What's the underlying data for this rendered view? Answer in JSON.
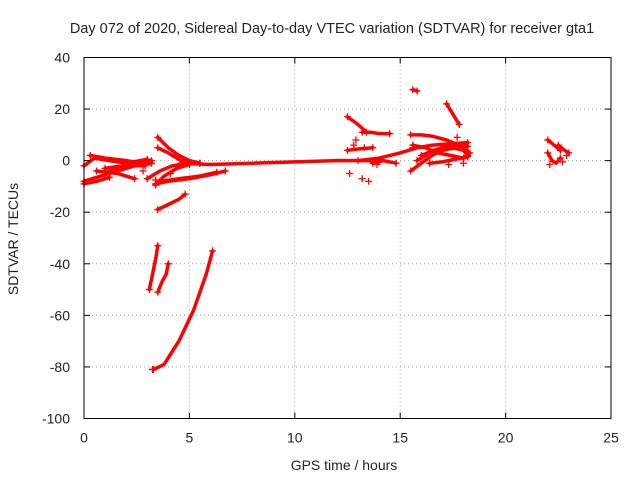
{
  "chart_data": {
    "type": "scatter",
    "title": "Day 072 of 2020, Sidereal Day-to-day VTEC variation (SDTVAR) for receiver gta1",
    "xlabel": "GPS time / hours",
    "ylabel": "SDTVAR / TECUs",
    "xlim": [
      0,
      25
    ],
    "ylim": [
      -100,
      40
    ],
    "x_ticks": [
      0,
      5,
      10,
      15,
      20,
      25
    ],
    "y_ticks": [
      -100,
      -80,
      -60,
      -40,
      -20,
      0,
      20,
      40
    ],
    "grid": true,
    "marker": "+",
    "series_color": "#ff0000",
    "tracks": [
      {
        "name": "main-band",
        "points": [
          [
            4.6,
            -1
          ],
          [
            6,
            -1.5
          ],
          [
            8,
            -1
          ],
          [
            10,
            -0.5
          ],
          [
            12,
            0
          ],
          [
            13,
            0
          ],
          [
            14,
            0
          ]
        ]
      },
      {
        "name": "early-left-1",
        "points": [
          [
            0,
            -2
          ],
          [
            0.5,
            1
          ],
          [
            1.2,
            0
          ],
          [
            2,
            -1
          ],
          [
            3,
            0.5
          ]
        ]
      },
      {
        "name": "early-left-2",
        "points": [
          [
            0,
            -8
          ],
          [
            0.8,
            -6
          ],
          [
            1.6,
            -4
          ],
          [
            2.4,
            -2
          ],
          [
            3.2,
            0
          ]
        ]
      },
      {
        "name": "early-left-3",
        "points": [
          [
            1,
            -3
          ],
          [
            1.8,
            -2
          ],
          [
            2.6,
            -1
          ],
          [
            3.2,
            -1
          ]
        ]
      },
      {
        "name": "early-left-4",
        "points": [
          [
            0.3,
            2
          ],
          [
            1,
            1
          ],
          [
            2,
            0
          ],
          [
            2.8,
            -1
          ]
        ]
      },
      {
        "name": "early-cross",
        "points": [
          [
            0.6,
            -4
          ],
          [
            1.6,
            -5
          ],
          [
            2.4,
            -7
          ]
        ]
      },
      {
        "name": "early-low",
        "points": [
          [
            0,
            -9
          ],
          [
            0.6,
            -8
          ],
          [
            1.2,
            -6.5
          ]
        ]
      },
      {
        "name": "early-mid",
        "points": [
          [
            1.2,
            -4
          ],
          [
            2,
            -2
          ],
          [
            2.9,
            -2
          ]
        ]
      },
      {
        "name": "mid-lower-band",
        "points": [
          [
            3.4,
            -9
          ],
          [
            4,
            -8
          ],
          [
            5,
            -7
          ],
          [
            6,
            -5.5
          ],
          [
            6.7,
            -4
          ]
        ]
      },
      {
        "name": "mid-lower-band-2",
        "points": [
          [
            3.6,
            -8
          ],
          [
            4.5,
            -7
          ],
          [
            5.5,
            -6
          ],
          [
            6.3,
            -4.5
          ]
        ]
      },
      {
        "name": "fan-up",
        "points": [
          [
            3.5,
            9
          ],
          [
            4,
            5
          ],
          [
            4.5,
            2
          ],
          [
            5,
            0
          ],
          [
            5.5,
            -1
          ]
        ]
      },
      {
        "name": "fan-mid",
        "points": [
          [
            3.5,
            5
          ],
          [
            4,
            3
          ],
          [
            4.6,
            0
          ],
          [
            5.5,
            -1
          ]
        ]
      },
      {
        "name": "fan-low",
        "points": [
          [
            3,
            -7
          ],
          [
            3.6,
            -4
          ],
          [
            4.2,
            -2
          ],
          [
            5,
            -1
          ]
        ]
      },
      {
        "name": "fan-lowest",
        "points": [
          [
            3.4,
            -9.5
          ],
          [
            3.8,
            -6
          ],
          [
            4.4,
            -3
          ],
          [
            5,
            -1.5
          ]
        ]
      },
      {
        "name": "dip-upper",
        "points": [
          [
            3.5,
            -19
          ],
          [
            4,
            -17
          ],
          [
            4.5,
            -15
          ],
          [
            4.8,
            -13
          ]
        ]
      },
      {
        "name": "deep-slope",
        "points": [
          [
            3.3,
            -81
          ],
          [
            3.8,
            -79
          ],
          [
            4.5,
            -70
          ],
          [
            5.2,
            -58
          ],
          [
            5.8,
            -44
          ],
          [
            6.1,
            -35
          ]
        ]
      },
      {
        "name": "dip-short-1",
        "points": [
          [
            3.1,
            -50
          ],
          [
            3.2,
            -46
          ],
          [
            3.3,
            -42
          ],
          [
            3.4,
            -38
          ],
          [
            3.5,
            -33
          ]
        ]
      },
      {
        "name": "dip-short-2",
        "points": [
          [
            3.5,
            -51
          ],
          [
            3.7,
            -47
          ],
          [
            3.9,
            -44
          ],
          [
            4,
            -40
          ]
        ]
      },
      {
        "name": "late-main",
        "points": [
          [
            13,
            0
          ],
          [
            14,
            1
          ],
          [
            15,
            3
          ],
          [
            15.8,
            5
          ],
          [
            16.5,
            6
          ],
          [
            17.3,
            6.5
          ],
          [
            18.2,
            7
          ]
        ]
      },
      {
        "name": "late-upper-1",
        "points": [
          [
            12.5,
            4
          ],
          [
            13,
            4.5
          ],
          [
            13.7,
            5
          ]
        ]
      },
      {
        "name": "late-upper-2",
        "points": [
          [
            12.5,
            17
          ],
          [
            13,
            14
          ],
          [
            13.4,
            11
          ]
        ]
      },
      {
        "name": "late-cluster",
        "points": [
          [
            13.2,
            11
          ],
          [
            13.6,
            11
          ],
          [
            14,
            10.5
          ],
          [
            14.5,
            10.5
          ]
        ]
      },
      {
        "name": "late-peak",
        "points": [
          [
            15.5,
            10
          ],
          [
            16,
            10
          ],
          [
            16.5,
            9.5
          ],
          [
            17.2,
            8
          ],
          [
            17.8,
            6
          ],
          [
            18.3,
            3
          ]
        ]
      },
      {
        "name": "late-dense-1",
        "points": [
          [
            15.5,
            -4
          ],
          [
            16,
            -1
          ],
          [
            16.5,
            2
          ],
          [
            17,
            4
          ],
          [
            17.6,
            5
          ],
          [
            18.1,
            6
          ]
        ]
      },
      {
        "name": "late-dense-2",
        "points": [
          [
            15.8,
            0
          ],
          [
            16.4,
            3
          ],
          [
            17,
            5
          ],
          [
            17.6,
            6
          ],
          [
            18.2,
            5.5
          ]
        ]
      },
      {
        "name": "late-dense-3",
        "points": [
          [
            16,
            2
          ],
          [
            16.6,
            4
          ],
          [
            17.2,
            5.5
          ],
          [
            18,
            4
          ],
          [
            18.2,
            2
          ]
        ]
      },
      {
        "name": "late-dense-4",
        "points": [
          [
            15.6,
            6
          ],
          [
            16.2,
            5
          ],
          [
            16.8,
            3
          ],
          [
            17.4,
            2
          ],
          [
            18,
            1
          ]
        ]
      },
      {
        "name": "late-dense-5",
        "points": [
          [
            16.4,
            -1
          ],
          [
            17,
            -0.5
          ],
          [
            17.6,
            0.5
          ],
          [
            18.2,
            1.5
          ]
        ]
      },
      {
        "name": "late-mini",
        "points": [
          [
            13.7,
            -1
          ],
          [
            14.2,
            0
          ],
          [
            14.8,
            -1
          ]
        ]
      },
      {
        "name": "late-steep",
        "points": [
          [
            17.2,
            22
          ],
          [
            17.5,
            18
          ],
          [
            17.8,
            14
          ]
        ]
      },
      {
        "name": "late-spike",
        "points": [
          [
            15.6,
            27.5
          ],
          [
            15.8,
            27
          ]
        ]
      },
      {
        "name": "far-right-1",
        "points": [
          [
            22,
            8
          ],
          [
            22.3,
            6
          ],
          [
            22.6,
            4
          ]
        ]
      },
      {
        "name": "far-right-2",
        "points": [
          [
            22.5,
            6
          ],
          [
            22.8,
            4
          ],
          [
            23,
            3
          ]
        ]
      },
      {
        "name": "far-right-3",
        "points": [
          [
            22,
            3
          ],
          [
            22.2,
            0
          ],
          [
            22.4,
            -1
          ],
          [
            22.6,
            1
          ]
        ]
      }
    ],
    "isolated_points": [
      [
        3.25,
        -81
      ],
      [
        12.6,
        -5
      ],
      [
        13.2,
        -7
      ],
      [
        13.5,
        -8
      ],
      [
        13.9,
        -1.5
      ],
      [
        12.8,
        6
      ],
      [
        13.3,
        5
      ],
      [
        15.6,
        5
      ],
      [
        17.3,
        -1.5
      ],
      [
        18,
        -1
      ],
      [
        3.1,
        -0.5
      ],
      [
        2.8,
        -4
      ],
      [
        4.1,
        -5
      ],
      [
        3.4,
        -7.5
      ],
      [
        22.1,
        -1.5
      ],
      [
        22.7,
        -0.5
      ],
      [
        22.9,
        2
      ],
      [
        17.7,
        9
      ],
      [
        12.9,
        8
      ]
    ]
  }
}
